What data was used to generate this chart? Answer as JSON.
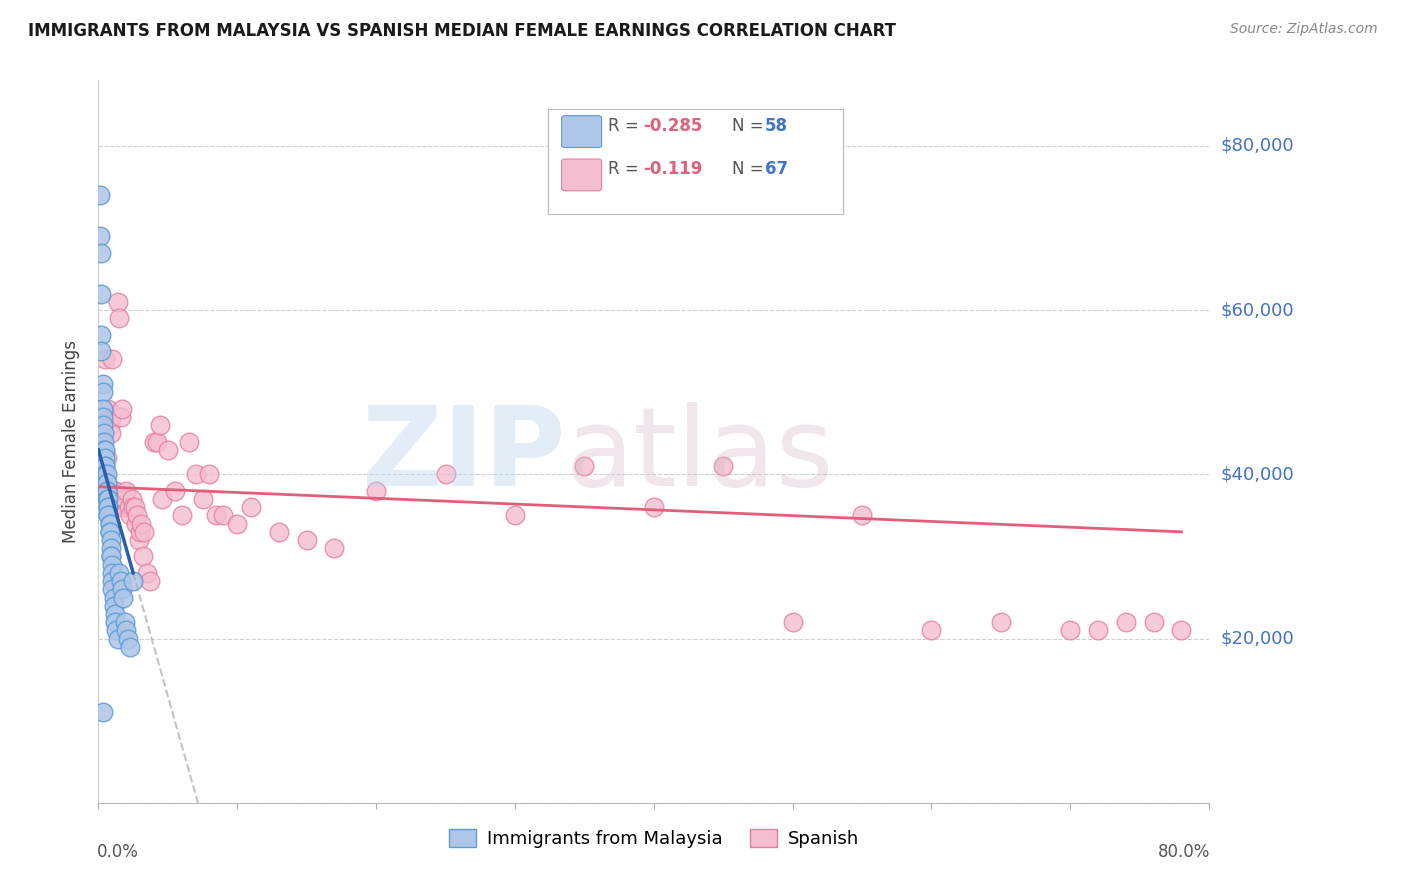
{
  "title": "IMMIGRANTS FROM MALAYSIA VS SPANISH MEDIAN FEMALE EARNINGS CORRELATION CHART",
  "source": "Source: ZipAtlas.com",
  "ylabel": "Median Female Earnings",
  "y_ticks": [
    0,
    20000,
    40000,
    60000,
    80000
  ],
  "y_tick_labels": [
    "",
    "$20,000",
    "$40,000",
    "$60,000",
    "$80,000"
  ],
  "x_lim": [
    0.0,
    0.8
  ],
  "y_lim": [
    0,
    88000
  ],
  "legend_r1": "R = -0.285",
  "legend_n1": "N = 58",
  "legend_r2": "R =  -0.119",
  "legend_n2": "N = 67",
  "series1_color": "#aec6e8",
  "series1_edge": "#5b9bd5",
  "series2_color": "#f5bdd0",
  "series2_edge": "#e87da0",
  "trend1_color": "#2a5fad",
  "trend2_color": "#e0607a",
  "blue_x": [
    0.001,
    0.001,
    0.002,
    0.002,
    0.002,
    0.002,
    0.003,
    0.003,
    0.003,
    0.003,
    0.003,
    0.004,
    0.004,
    0.004,
    0.005,
    0.005,
    0.005,
    0.005,
    0.005,
    0.006,
    0.006,
    0.006,
    0.006,
    0.006,
    0.006,
    0.007,
    0.007,
    0.007,
    0.007,
    0.007,
    0.008,
    0.008,
    0.008,
    0.008,
    0.009,
    0.009,
    0.009,
    0.009,
    0.01,
    0.01,
    0.01,
    0.01,
    0.011,
    0.011,
    0.012,
    0.012,
    0.013,
    0.014,
    0.015,
    0.016,
    0.017,
    0.018,
    0.019,
    0.02,
    0.021,
    0.023,
    0.025,
    0.003
  ],
  "blue_y": [
    74000,
    69000,
    67000,
    62000,
    57000,
    55000,
    51000,
    50000,
    48000,
    47000,
    46000,
    45000,
    44000,
    43000,
    43000,
    42000,
    41000,
    41000,
    40000,
    40000,
    39000,
    39000,
    38000,
    38000,
    37000,
    37000,
    36000,
    36000,
    35000,
    35000,
    34000,
    34000,
    33000,
    33000,
    32000,
    31000,
    30000,
    30000,
    29000,
    28000,
    27000,
    26000,
    25000,
    24000,
    23000,
    22000,
    21000,
    20000,
    28000,
    27000,
    26000,
    25000,
    22000,
    21000,
    20000,
    19000,
    27000,
    11000
  ],
  "pink_x": [
    0.004,
    0.005,
    0.006,
    0.007,
    0.007,
    0.008,
    0.009,
    0.009,
    0.01,
    0.01,
    0.011,
    0.012,
    0.013,
    0.014,
    0.015,
    0.016,
    0.017,
    0.018,
    0.019,
    0.02,
    0.022,
    0.023,
    0.024,
    0.025,
    0.026,
    0.027,
    0.028,
    0.029,
    0.03,
    0.031,
    0.032,
    0.033,
    0.035,
    0.037,
    0.04,
    0.042,
    0.044,
    0.046,
    0.05,
    0.055,
    0.06,
    0.065,
    0.07,
    0.075,
    0.08,
    0.085,
    0.09,
    0.1,
    0.11,
    0.13,
    0.15,
    0.17,
    0.2,
    0.25,
    0.3,
    0.35,
    0.4,
    0.45,
    0.5,
    0.55,
    0.6,
    0.65,
    0.7,
    0.72,
    0.74,
    0.76,
    0.78
  ],
  "pink_y": [
    38000,
    54000,
    42000,
    48000,
    37000,
    46000,
    45000,
    47000,
    36000,
    54000,
    38000,
    37000,
    38000,
    61000,
    59000,
    47000,
    48000,
    36000,
    37000,
    38000,
    36000,
    35000,
    37000,
    36000,
    36000,
    34000,
    35000,
    32000,
    33000,
    34000,
    30000,
    33000,
    28000,
    27000,
    44000,
    44000,
    46000,
    37000,
    43000,
    38000,
    35000,
    44000,
    40000,
    37000,
    40000,
    35000,
    35000,
    34000,
    36000,
    33000,
    32000,
    31000,
    38000,
    40000,
    35000,
    41000,
    36000,
    41000,
    22000,
    35000,
    21000,
    22000,
    21000,
    21000,
    22000,
    22000,
    21000
  ]
}
